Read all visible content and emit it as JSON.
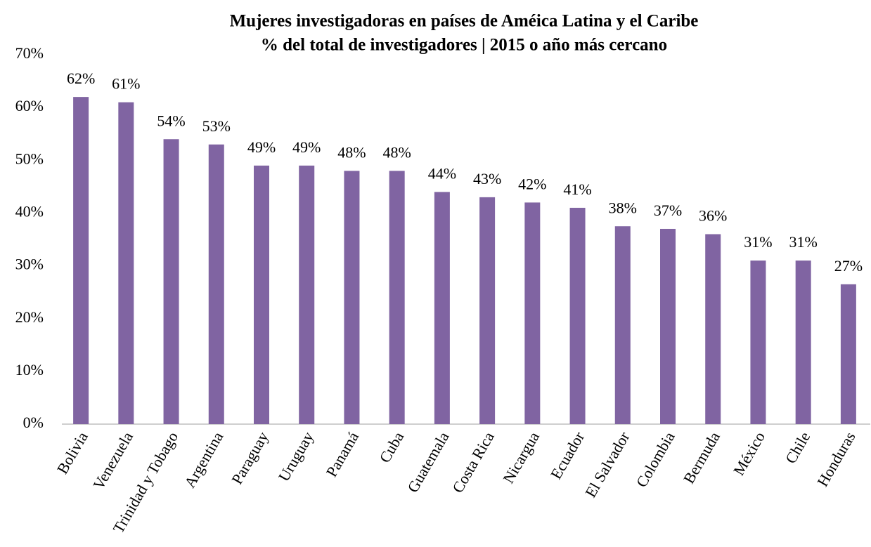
{
  "chart_data": {
    "type": "bar",
    "title": "Mujeres investigadoras en países de Améica Latina y el Caribe",
    "subtitle": "% del total de investigadores | 2015 o año más cercano",
    "categories": [
      "Bolivia",
      "Venezuela",
      "Trinidad y Tobago",
      "Argentina",
      "Paraguay",
      "Uruguay",
      "Panamá",
      "Cuba",
      "Guatemala",
      "Costa Rica",
      "Nicargua",
      "Ecuador",
      "El Salvador",
      "Colombia",
      "Bermuda",
      "México",
      "Chile",
      "Honduras"
    ],
    "values": [
      62,
      61,
      54,
      53,
      49,
      49,
      48,
      48,
      44,
      43,
      42,
      41,
      37.5,
      37,
      36,
      31,
      31,
      26.5
    ],
    "value_labels": [
      "62%",
      "61%",
      "54%",
      "53%",
      "49%",
      "49%",
      "48%",
      "48%",
      "44%",
      "43%",
      "42%",
      "41%",
      "38%",
      "37%",
      "36%",
      "31%",
      "31%",
      "27%"
    ],
    "color": "#8064a2",
    "ylim": [
      0,
      70
    ],
    "yticks": [
      {
        "value": 0,
        "label": "0%"
      },
      {
        "value": 10,
        "label": "10%"
      },
      {
        "value": 20,
        "label": "20%"
      },
      {
        "value": 30,
        "label": "30%"
      },
      {
        "value": 40,
        "label": "40%"
      },
      {
        "value": 50,
        "label": "50%"
      },
      {
        "value": 60,
        "label": "60%"
      },
      {
        "value": 70,
        "label": "70%"
      }
    ],
    "grid": false
  }
}
